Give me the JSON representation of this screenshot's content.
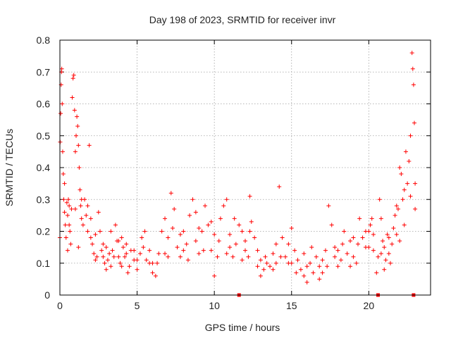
{
  "chart_data": {
    "type": "scatter",
    "title": "Day 198 of 2023, SRMTID for receiver invr",
    "xlabel": "GPS time / hours",
    "ylabel": "SRMTID / TECUs",
    "xlim": [
      0,
      24
    ],
    "ylim": [
      0,
      0.8
    ],
    "xticks": [
      0,
      5,
      10,
      15,
      20
    ],
    "yticks": [
      0,
      0.1,
      0.2,
      0.3,
      0.4,
      0.5,
      0.6,
      0.7,
      0.8
    ],
    "xtick_labels": [
      "0",
      "5",
      "10",
      "15",
      "20"
    ],
    "ytick_labels": [
      "0",
      "0.1",
      "0.2",
      "0.3",
      "0.4",
      "0.5",
      "0.6",
      "0.7",
      "0.8"
    ],
    "grid": true,
    "marker": "plus",
    "color": "#ff0000",
    "series": [
      {
        "name": "SRMTID",
        "points": [
          [
            0.02,
            0.48
          ],
          [
            0.05,
            0.57
          ],
          [
            0.08,
            0.66
          ],
          [
            0.1,
            0.7
          ],
          [
            0.12,
            0.71
          ],
          [
            0.15,
            0.6
          ],
          [
            0.18,
            0.45
          ],
          [
            0.22,
            0.38
          ],
          [
            0.25,
            0.3
          ],
          [
            0.3,
            0.26
          ],
          [
            0.35,
            0.22
          ],
          [
            0.4,
            0.18
          ],
          [
            0.45,
            0.29
          ],
          [
            0.5,
            0.25
          ],
          [
            0.55,
            0.3
          ],
          [
            0.6,
            0.28
          ],
          [
            0.65,
            0.2
          ],
          [
            0.7,
            0.16
          ],
          [
            0.75,
            0.27
          ],
          [
            0.8,
            0.62
          ],
          [
            0.85,
            0.68
          ],
          [
            0.9,
            0.69
          ],
          [
            0.95,
            0.58
          ],
          [
            1.0,
            0.45
          ],
          [
            1.05,
            0.5
          ],
          [
            1.1,
            0.56
          ],
          [
            1.15,
            0.53
          ],
          [
            1.2,
            0.47
          ],
          [
            1.25,
            0.4
          ],
          [
            1.3,
            0.33
          ],
          [
            1.35,
            0.28
          ],
          [
            1.4,
            0.24
          ],
          [
            1.5,
            0.22
          ],
          [
            1.6,
            0.3
          ],
          [
            1.7,
            0.25
          ],
          [
            1.8,
            0.2
          ],
          [
            1.9,
            0.47
          ],
          [
            2.0,
            0.18
          ],
          [
            2.1,
            0.16
          ],
          [
            2.2,
            0.13
          ],
          [
            2.3,
            0.11
          ],
          [
            2.4,
            0.12
          ],
          [
            2.5,
            0.26
          ],
          [
            2.6,
            0.2
          ],
          [
            2.7,
            0.14
          ],
          [
            2.8,
            0.12
          ],
          [
            2.9,
            0.1
          ],
          [
            3.0,
            0.08
          ],
          [
            3.1,
            0.11
          ],
          [
            3.2,
            0.13
          ],
          [
            3.3,
            0.09
          ],
          [
            3.4,
            0.14
          ],
          [
            3.5,
            0.12
          ],
          [
            3.6,
            0.22
          ],
          [
            3.7,
            0.17
          ],
          [
            3.8,
            0.12
          ],
          [
            3.9,
            0.1
          ],
          [
            4.0,
            0.09
          ],
          [
            4.1,
            0.15
          ],
          [
            4.2,
            0.12
          ],
          [
            4.3,
            0.13
          ],
          [
            4.4,
            0.07
          ],
          [
            4.5,
            0.09
          ],
          [
            4.6,
            0.14
          ],
          [
            4.8,
            0.11
          ],
          [
            5.0,
            0.08
          ],
          [
            5.2,
            0.13
          ],
          [
            5.4,
            0.15
          ],
          [
            5.5,
            0.2
          ],
          [
            5.6,
            0.11
          ],
          [
            5.8,
            0.1
          ],
          [
            6.0,
            0.07
          ],
          [
            6.2,
            0.06
          ],
          [
            6.4,
            0.13
          ],
          [
            6.6,
            0.2
          ],
          [
            6.8,
            0.24
          ],
          [
            7.0,
            0.18
          ],
          [
            7.2,
            0.32
          ],
          [
            7.4,
            0.27
          ],
          [
            7.6,
            0.15
          ],
          [
            7.8,
            0.12
          ],
          [
            8.0,
            0.2
          ],
          [
            8.2,
            0.16
          ],
          [
            8.4,
            0.25
          ],
          [
            8.6,
            0.3
          ],
          [
            8.8,
            0.17
          ],
          [
            9.0,
            0.13
          ],
          [
            9.2,
            0.2
          ],
          [
            9.4,
            0.28
          ],
          [
            9.6,
            0.22
          ],
          [
            9.8,
            0.14
          ],
          [
            10.0,
            0.06
          ],
          [
            10.2,
            0.12
          ],
          [
            10.4,
            0.24
          ],
          [
            10.6,
            0.28
          ],
          [
            10.8,
            0.3
          ],
          [
            11.0,
            0.19
          ],
          [
            11.2,
            0.12
          ],
          [
            11.4,
            0.16
          ],
          [
            11.6,
            0.22
          ],
          [
            11.8,
            0.2
          ],
          [
            12.0,
            0.17
          ],
          [
            12.2,
            0.12
          ],
          [
            12.3,
            0.31
          ],
          [
            12.4,
            0.23
          ],
          [
            12.6,
            0.18
          ],
          [
            12.8,
            0.09
          ],
          [
            13.0,
            0.06
          ],
          [
            13.2,
            0.08
          ],
          [
            13.4,
            0.1
          ],
          [
            13.6,
            0.09
          ],
          [
            13.8,
            0.13
          ],
          [
            14.0,
            0.16
          ],
          [
            14.2,
            0.34
          ],
          [
            14.4,
            0.18
          ],
          [
            14.6,
            0.12
          ],
          [
            14.8,
            0.1
          ],
          [
            15.0,
            0.21
          ],
          [
            15.2,
            0.14
          ],
          [
            15.4,
            0.11
          ],
          [
            15.6,
            0.08
          ],
          [
            15.8,
            0.06
          ],
          [
            16.0,
            0.04
          ],
          [
            16.2,
            0.1
          ],
          [
            16.4,
            0.07
          ],
          [
            16.6,
            0.12
          ],
          [
            16.8,
            0.09
          ],
          [
            17.0,
            0.11
          ],
          [
            17.2,
            0.14
          ],
          [
            17.4,
            0.28
          ],
          [
            17.6,
            0.22
          ],
          [
            17.8,
            0.15
          ],
          [
            18.0,
            0.09
          ],
          [
            18.2,
            0.11
          ],
          [
            18.4,
            0.2
          ],
          [
            18.6,
            0.13
          ],
          [
            18.8,
            0.17
          ],
          [
            19.0,
            0.12
          ],
          [
            19.2,
            0.1
          ],
          [
            19.4,
            0.24
          ],
          [
            19.6,
            0.18
          ],
          [
            19.8,
            0.15
          ],
          [
            20.0,
            0.2
          ],
          [
            20.1,
            0.22
          ],
          [
            20.2,
            0.24
          ],
          [
            20.3,
            0.19
          ],
          [
            20.5,
            0.07
          ],
          [
            20.6,
            0.12
          ],
          [
            20.7,
            0.3
          ],
          [
            20.8,
            0.24
          ],
          [
            20.9,
            0.17
          ],
          [
            21.0,
            0.15
          ],
          [
            21.1,
            0.11
          ],
          [
            21.2,
            0.19
          ],
          [
            21.3,
            0.13
          ],
          [
            21.4,
            0.1
          ],
          [
            21.5,
            0.16
          ],
          [
            21.6,
            0.21
          ],
          [
            21.7,
            0.25
          ],
          [
            21.8,
            0.19
          ],
          [
            21.9,
            0.27
          ],
          [
            22.0,
            0.4
          ],
          [
            22.1,
            0.38
          ],
          [
            22.2,
            0.3
          ],
          [
            22.3,
            0.33
          ],
          [
            22.4,
            0.45
          ],
          [
            22.5,
            0.35
          ],
          [
            22.6,
            0.42
          ],
          [
            22.7,
            0.5
          ],
          [
            22.8,
            0.76
          ],
          [
            22.85,
            0.71
          ],
          [
            22.9,
            0.66
          ],
          [
            22.95,
            0.54
          ],
          [
            23.0,
            0.35
          ],
          [
            0.3,
            0.35
          ],
          [
            0.6,
            0.22
          ],
          [
            1.0,
            0.27
          ],
          [
            1.4,
            0.3
          ],
          [
            1.8,
            0.28
          ],
          [
            2.3,
            0.19
          ],
          [
            2.8,
            0.16
          ],
          [
            3.3,
            0.2
          ],
          [
            3.8,
            0.17
          ],
          [
            4.3,
            0.16
          ],
          [
            4.8,
            0.14
          ],
          [
            5.3,
            0.18
          ],
          [
            5.8,
            0.14
          ],
          [
            6.3,
            0.1
          ],
          [
            6.8,
            0.13
          ],
          [
            7.3,
            0.21
          ],
          [
            7.8,
            0.19
          ],
          [
            8.3,
            0.11
          ],
          [
            8.8,
            0.26
          ],
          [
            9.3,
            0.14
          ],
          [
            9.8,
            0.23
          ],
          [
            10.3,
            0.17
          ],
          [
            10.8,
            0.13
          ],
          [
            11.3,
            0.24
          ],
          [
            11.8,
            0.11
          ],
          [
            12.3,
            0.2
          ],
          [
            12.8,
            0.14
          ],
          [
            13.3,
            0.12
          ],
          [
            13.8,
            0.08
          ],
          [
            14.3,
            0.12
          ],
          [
            14.8,
            0.16
          ],
          [
            15.3,
            0.07
          ],
          [
            15.8,
            0.13
          ],
          [
            16.3,
            0.15
          ],
          [
            16.8,
            0.05
          ],
          [
            17.3,
            0.09
          ],
          [
            17.8,
            0.12
          ],
          [
            18.3,
            0.16
          ],
          [
            18.8,
            0.09
          ],
          [
            19.3,
            0.16
          ],
          [
            19.8,
            0.2
          ],
          [
            20.3,
            0.14
          ],
          [
            20.8,
            0.13
          ],
          [
            21.3,
            0.18
          ],
          [
            21.8,
            0.28
          ],
          [
            22.3,
            0.22
          ],
          [
            22.7,
            0.31
          ],
          [
            23.0,
            0.27
          ],
          [
            0.5,
            0.14
          ],
          [
            1.2,
            0.15
          ],
          [
            2.0,
            0.24
          ],
          [
            3.0,
            0.15
          ],
          [
            4.0,
            0.18
          ],
          [
            5.0,
            0.11
          ],
          [
            6.0,
            0.1
          ],
          [
            7.0,
            0.12
          ],
          [
            8.0,
            0.14
          ],
          [
            9.0,
            0.21
          ],
          [
            10.0,
            0.19
          ],
          [
            11.0,
            0.15
          ],
          [
            12.0,
            0.14
          ],
          [
            13.0,
            0.11
          ],
          [
            14.0,
            0.1
          ],
          [
            15.0,
            0.1
          ],
          [
            16.0,
            0.09
          ],
          [
            17.0,
            0.07
          ],
          [
            18.0,
            0.14
          ],
          [
            19.0,
            0.18
          ],
          [
            20.0,
            0.15
          ],
          [
            21.0,
            0.08
          ],
          [
            22.0,
            0.17
          ],
          [
            0.0,
            0.18
          ],
          [
            11.6,
            0.0
          ],
          [
            20.6,
            0.0
          ],
          [
            22.9,
            0.0
          ]
        ]
      }
    ]
  }
}
